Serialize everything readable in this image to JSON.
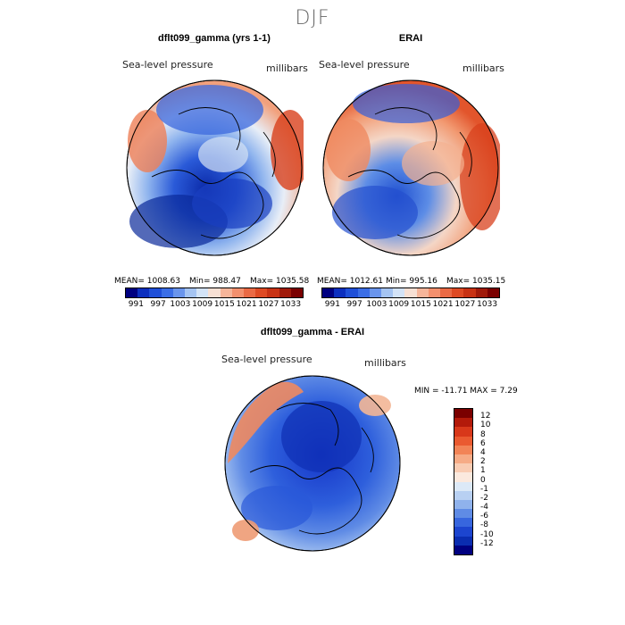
{
  "season": "DJF",
  "panels": {
    "left": {
      "title": "dflt099_gamma (yrs 1-1)",
      "variable": "Sea-level pressure",
      "units": "millibars",
      "mean": "MEAN= 1008.63",
      "min": "Min= 988.47",
      "max": "Max= 1035.58"
    },
    "right": {
      "title": "ERAI",
      "variable": "Sea-level pressure",
      "units": "millibars",
      "mean": "MEAN= 1012.61",
      "min": "Min= 995.16",
      "max": "Max= 1035.15"
    },
    "diff": {
      "title": "dflt099_gamma - ERAI",
      "variable": "Sea-level pressure",
      "units": "millibars",
      "minmax": "MIN = -11.71 MAX =  7.29"
    }
  },
  "colorbar_top": {
    "colors": [
      "#000080",
      "#0c2fbf",
      "#1f4fd8",
      "#3b6ee6",
      "#6a95ec",
      "#a5c4f2",
      "#d3e3f7",
      "#f7e0d4",
      "#f6b59a",
      "#f3906e",
      "#ea6a45",
      "#de4a24",
      "#c83214",
      "#a01a0a",
      "#7a0000"
    ],
    "ticks": [
      "991",
      "997",
      "1003",
      "1009",
      "1015",
      "1021",
      "1027",
      "1033"
    ]
  },
  "colorbar_diff": {
    "colors": [
      "#7a0000",
      "#b31a0a",
      "#d8381a",
      "#ea5a30",
      "#f28457",
      "#f6ab86",
      "#f9ccb3",
      "#fbe9de",
      "#dce9f7",
      "#b8d0f2",
      "#8fb2ec",
      "#5f8be5",
      "#3766de",
      "#1c45cf",
      "#0a2db0",
      "#000080"
    ],
    "ticks": [
      "12",
      "10",
      "8",
      "6",
      "4",
      "2",
      "1",
      "0",
      "-1",
      "-2",
      "-4",
      "-6",
      "-8",
      "-10",
      "-12"
    ]
  }
}
